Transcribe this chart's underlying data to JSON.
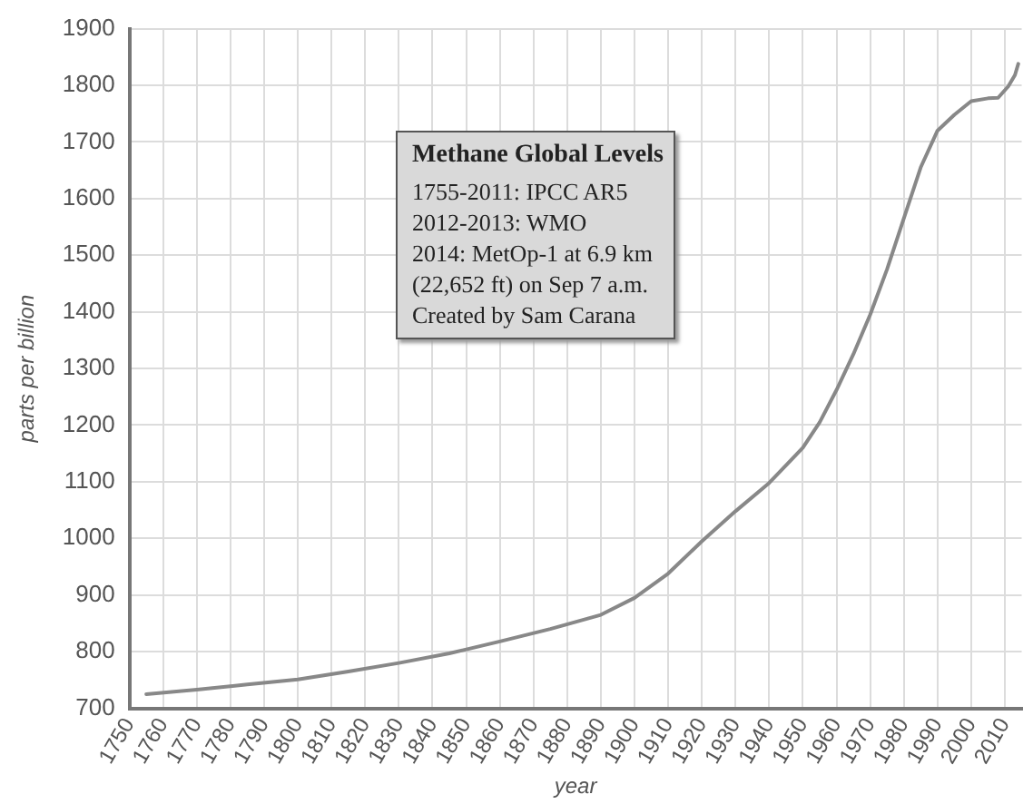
{
  "chart_data": {
    "type": "line",
    "title": "Methane Global Levels",
    "xlabel": "year",
    "ylabel": "parts per billion",
    "annotations": [
      "1755-2011: IPCC AR5",
      "2012-2013: WMO",
      "2014: MetOp-1 at 6.9 km",
      "(22,652 ft) on Sep 7 a.m.",
      "Created by Sam Carana"
    ],
    "x": [
      1755,
      1770,
      1785,
      1800,
      1815,
      1830,
      1845,
      1860,
      1875,
      1890,
      1900,
      1910,
      1920,
      1930,
      1940,
      1950,
      1955,
      1960,
      1965,
      1970,
      1975,
      1980,
      1985,
      1990,
      1995,
      2000,
      2005,
      2008,
      2011,
      2012,
      2013,
      2014
    ],
    "series": [
      {
        "color": "#888888",
        "values": [
          725,
          733,
          742,
          751,
          765,
          780,
          797,
          818,
          840,
          865,
          895,
          938,
          995,
          1048,
          1098,
          1160,
          1205,
          1262,
          1325,
          1395,
          1475,
          1565,
          1655,
          1720,
          1748,
          1772,
          1777,
          1778,
          1798,
          1808,
          1818,
          1838
        ]
      }
    ],
    "xlim": [
      1750,
      2015
    ],
    "xticks": [
      1750,
      1760,
      1770,
      1780,
      1790,
      1800,
      1810,
      1820,
      1830,
      1840,
      1850,
      1860,
      1870,
      1880,
      1890,
      1900,
      1910,
      1920,
      1930,
      1940,
      1950,
      1960,
      1970,
      1980,
      1990,
      2000,
      2010
    ],
    "ylim": [
      700,
      1900
    ],
    "yticks": [
      700,
      800,
      900,
      1000,
      1100,
      1200,
      1300,
      1400,
      1500,
      1600,
      1700,
      1800,
      1900
    ],
    "grid": true,
    "marker": "none",
    "line_style": "solid"
  }
}
